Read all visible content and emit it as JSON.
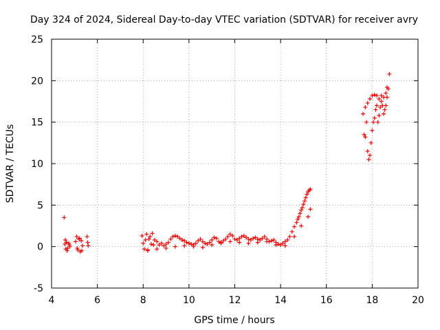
{
  "chart_data": {
    "type": "scatter",
    "title": "Day 324 of 2024, Sidereal Day-to-day VTEC variation (SDTVAR) for receiver avry",
    "xlabel": "GPS time / hours",
    "ylabel": "SDTVAR / TECUs",
    "xlim": [
      4,
      20
    ],
    "ylim": [
      -5,
      25
    ],
    "xticks": [
      "4",
      "6",
      "8",
      "10",
      "12",
      "14",
      "16",
      "18",
      "20"
    ],
    "yticks": [
      "-5",
      "0",
      "5",
      "10",
      "15",
      "20",
      "25"
    ],
    "grid": true,
    "marker": "+",
    "colors": {
      "series": "#ff0000"
    },
    "series": [
      {
        "name": "SDTVAR",
        "x": [
          4.55,
          4.58,
          4.62,
          4.65,
          4.7,
          4.75,
          4.8,
          4.6,
          4.68,
          4.78,
          5.05,
          5.1,
          5.15,
          5.2,
          5.25,
          5.3,
          5.35,
          5.12,
          5.22,
          5.32,
          5.55,
          5.58,
          5.6,
          7.95,
          8.0,
          8.05,
          8.1,
          8.15,
          8.2,
          8.25,
          8.3,
          8.35,
          8.4,
          8.45,
          8.5,
          8.6,
          8.7,
          8.8,
          8.9,
          9.0,
          9.1,
          9.2,
          9.3,
          9.4,
          9.5,
          9.6,
          9.7,
          9.8,
          9.9,
          10.0,
          10.1,
          10.2,
          10.3,
          10.4,
          10.5,
          10.6,
          10.7,
          10.8,
          10.9,
          11.0,
          11.1,
          11.2,
          11.3,
          11.4,
          11.5,
          11.6,
          11.7,
          11.8,
          11.9,
          12.0,
          12.1,
          12.2,
          12.3,
          12.4,
          12.5,
          12.6,
          12.7,
          12.8,
          12.9,
          13.0,
          13.1,
          13.2,
          13.3,
          13.4,
          13.5,
          13.6,
          13.7,
          13.8,
          13.9,
          14.0,
          14.1,
          14.2,
          14.3,
          14.4,
          14.5,
          14.6,
          14.7,
          14.75,
          14.8,
          14.85,
          14.9,
          14.95,
          15.0,
          15.05,
          15.1,
          15.15,
          15.2,
          15.25,
          15.3,
          8.2,
          8.6,
          9.0,
          9.4,
          9.8,
          10.2,
          10.6,
          11.0,
          11.4,
          11.8,
          12.2,
          12.6,
          13.0,
          13.4,
          13.8,
          14.2,
          14.6,
          14.9,
          15.2,
          15.3,
          17.6,
          17.65,
          17.7,
          17.75,
          17.8,
          17.85,
          17.9,
          17.95,
          18.0,
          18.05,
          18.1,
          18.15,
          18.2,
          18.25,
          18.3,
          18.35,
          18.4,
          18.45,
          18.5,
          18.55,
          18.6,
          18.65,
          18.7,
          18.75,
          17.7,
          17.8,
          17.9,
          18.0,
          18.1,
          18.2,
          18.3,
          18.4,
          18.5,
          18.6,
          18.65
        ],
        "y": [
          3.5,
          0.3,
          -0.3,
          0.5,
          -0.2,
          0.4,
          0.0,
          0.8,
          -0.5,
          0.2,
          0.6,
          1.2,
          -0.4,
          0.9,
          -0.6,
          0.7,
          0.1,
          -0.2,
          1.0,
          -0.5,
          1.2,
          0.5,
          0.1,
          1.3,
          0.4,
          -0.3,
          0.8,
          1.5,
          -0.5,
          0.9,
          1.2,
          0.3,
          1.6,
          0.2,
          0.8,
          0.6,
          0.2,
          0.4,
          0.1,
          0.3,
          0.5,
          0.9,
          1.2,
          1.3,
          1.2,
          1.0,
          0.8,
          0.7,
          0.5,
          0.4,
          0.3,
          0.2,
          0.4,
          0.7,
          0.9,
          0.6,
          0.4,
          0.3,
          0.5,
          0.8,
          1.1,
          1.0,
          0.6,
          0.5,
          0.7,
          0.9,
          1.2,
          1.5,
          1.3,
          0.9,
          0.8,
          1.0,
          1.2,
          1.3,
          1.1,
          0.9,
          0.8,
          1.0,
          1.1,
          0.9,
          0.8,
          1.0,
          1.2,
          0.9,
          0.6,
          0.7,
          0.8,
          0.5,
          0.3,
          0.2,
          0.4,
          0.6,
          0.8,
          1.2,
          1.8,
          2.4,
          2.9,
          3.3,
          3.6,
          4.0,
          4.4,
          4.7,
          5.1,
          5.5,
          5.9,
          6.3,
          6.6,
          6.8,
          6.9,
          -0.4,
          -0.3,
          -0.2,
          0.0,
          0.1,
          0.0,
          -0.1,
          0.2,
          0.4,
          0.6,
          0.5,
          0.4,
          0.5,
          0.6,
          0.2,
          0.1,
          1.2,
          2.5,
          3.6,
          4.5,
          16.0,
          13.5,
          13.2,
          15.0,
          11.5,
          10.5,
          11.0,
          12.5,
          14.0,
          15.0,
          15.5,
          16.5,
          17.0,
          15.0,
          15.8,
          16.8,
          18.2,
          17.0,
          16.0,
          16.5,
          17.0,
          18.0,
          19.0,
          20.8,
          16.8,
          17.3,
          17.8,
          18.2,
          18.3,
          18.2,
          17.8,
          17.5,
          18.0,
          18.5,
          19.2
        ]
      }
    ]
  }
}
